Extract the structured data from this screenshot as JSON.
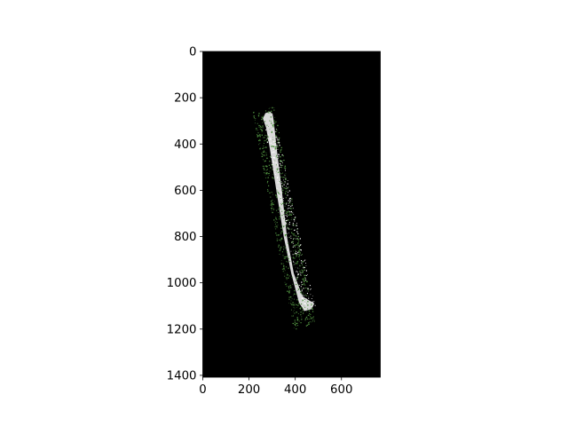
{
  "chart_data": {
    "type": "heatmap",
    "title": "",
    "xlabel": "",
    "ylabel": "",
    "xlim": [
      0,
      768
    ],
    "ylim": [
      1408,
      0
    ],
    "x_ticks": [
      0,
      200,
      400,
      600
    ],
    "y_ticks": [
      0,
      200,
      400,
      600,
      800,
      1000,
      1200,
      1400
    ],
    "x_tick_labels": [
      "0",
      "200",
      "400",
      "600"
    ],
    "y_tick_labels": [
      "0",
      "200",
      "400",
      "600",
      "800",
      "1000",
      "1200",
      "1400"
    ],
    "background_color": "#000000",
    "grid": false,
    "layers": [
      {
        "role": "segmented-region",
        "color": "#d9d9d9",
        "outline_xy": [
          [
            262,
            290
          ],
          [
            272,
            268
          ],
          [
            290,
            262
          ],
          [
            300,
            270
          ],
          [
            305,
            300
          ],
          [
            318,
            420
          ],
          [
            340,
            600
          ],
          [
            362,
            800
          ],
          [
            392,
            960
          ],
          [
            430,
            1060
          ],
          [
            480,
            1090
          ],
          [
            470,
            1112
          ],
          [
            440,
            1120
          ],
          [
            418,
            1085
          ],
          [
            385,
            960
          ],
          [
            352,
            800
          ],
          [
            320,
            600
          ],
          [
            292,
            420
          ],
          [
            276,
            330
          ]
        ]
      },
      {
        "role": "edge-detections",
        "color": "#4f8f3f",
        "band": {
          "top": [
            260,
            245
          ],
          "bottom": [
            440,
            1195
          ],
          "half_width": 48
        },
        "point_count": 700
      },
      {
        "role": "white-speckles",
        "color": "#ffffff",
        "band": {
          "top": [
            290,
            330
          ],
          "bottom": [
            460,
            1105
          ],
          "half_width": 26
        },
        "point_count": 260
      }
    ]
  }
}
